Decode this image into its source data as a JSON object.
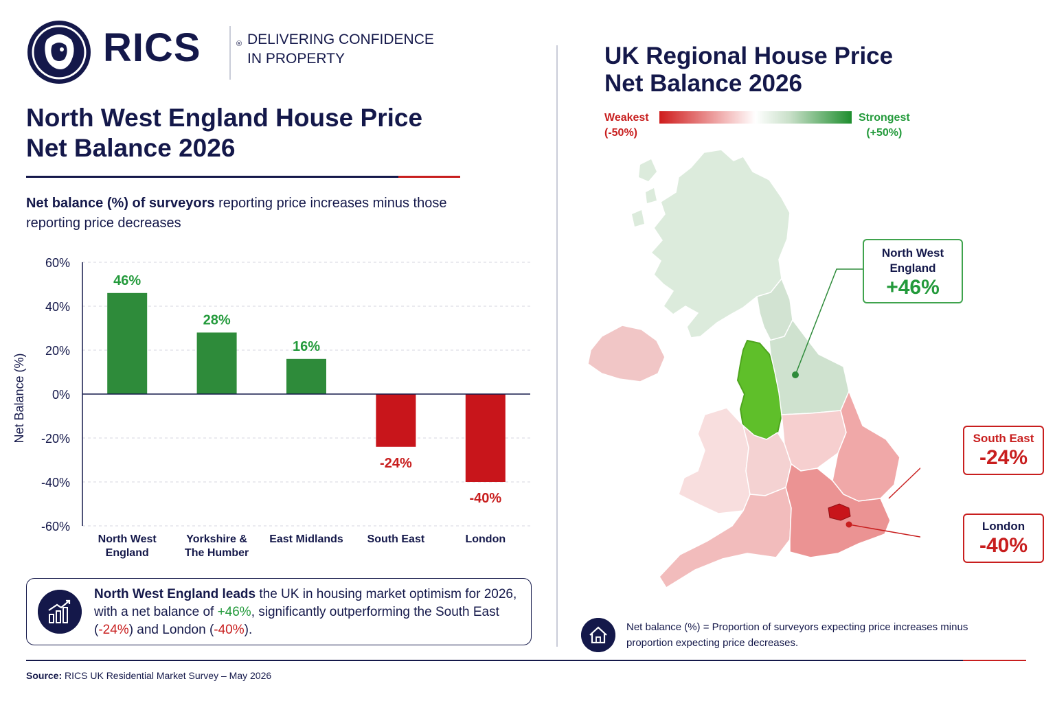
{
  "brand": {
    "logo_text": "RICS",
    "registered": "®",
    "tagline": "DELIVERING CONFIDENCE\nIN PROPERTY",
    "colors": {
      "navy": "#14184a",
      "green": "#239a3b",
      "red": "#c81e1e"
    }
  },
  "left": {
    "title": "North West England House Price\nNet Balance 2026",
    "subtitle_bold": "Net balance (%) of surveyors",
    "subtitle_rest": " reporting price increases minus those reporting price decreases",
    "callout": {
      "icon": "growth-chart-icon",
      "part1": "North West England leads",
      "part2": " the UK in housing market optimism for 2026, with a net balance of ",
      "val1": "+46%",
      "part3": ", significantly outperforming the South East (",
      "val2": "-24%",
      "part4": ") and London (",
      "val3": "-40%",
      "part5": ")."
    }
  },
  "chart_data": {
    "type": "bar",
    "title": "North West England House Price Net Balance 2026",
    "ylabel": "Net Balance (%)",
    "xlabel": "",
    "categories": [
      "North West England",
      "Yorkshire & The Humber",
      "East Midlands",
      "South East",
      "London"
    ],
    "category_lines": [
      [
        "North West",
        "England"
      ],
      [
        "Yorkshire &",
        "The Humber"
      ],
      [
        "East Midlands"
      ],
      [
        "South East"
      ],
      [
        "London"
      ]
    ],
    "values": [
      46,
      28,
      16,
      -24,
      -40
    ],
    "value_labels": [
      "46%",
      "28%",
      "16%",
      "-24%",
      "-40%"
    ],
    "ylim": [
      -60,
      60
    ],
    "yticks": [
      60,
      40,
      20,
      0,
      -20,
      -40,
      -60
    ],
    "ytick_labels": [
      "60%",
      "40%",
      "20%",
      "0%",
      "-20%",
      "-40%",
      "-60%"
    ],
    "grid": true,
    "positive_color": "#2e8b3a",
    "negative_color": "#c8151b"
  },
  "map": {
    "title": "UK Regional House Price\nNet Balance 2026",
    "legend_min": "Weakest\n(-50%)",
    "legend_max": "Strongest\n(+50%)",
    "legend_range": [
      -50,
      50
    ],
    "labels": {
      "north_west": {
        "name": "North West\nEngland",
        "value": "+46%"
      },
      "south_east": {
        "name": "South East",
        "value": "-24%"
      },
      "london": {
        "name": "London",
        "value": "-40%"
      }
    },
    "definition": "Net balance (%) = Proportion of surveyors expecting price increases minus proportion expecting price decreases.",
    "definition_icon": "house-icon"
  },
  "footer": {
    "source_label": "Source:",
    "source_text": " RICS UK Residential Market Survey – May 2026"
  }
}
